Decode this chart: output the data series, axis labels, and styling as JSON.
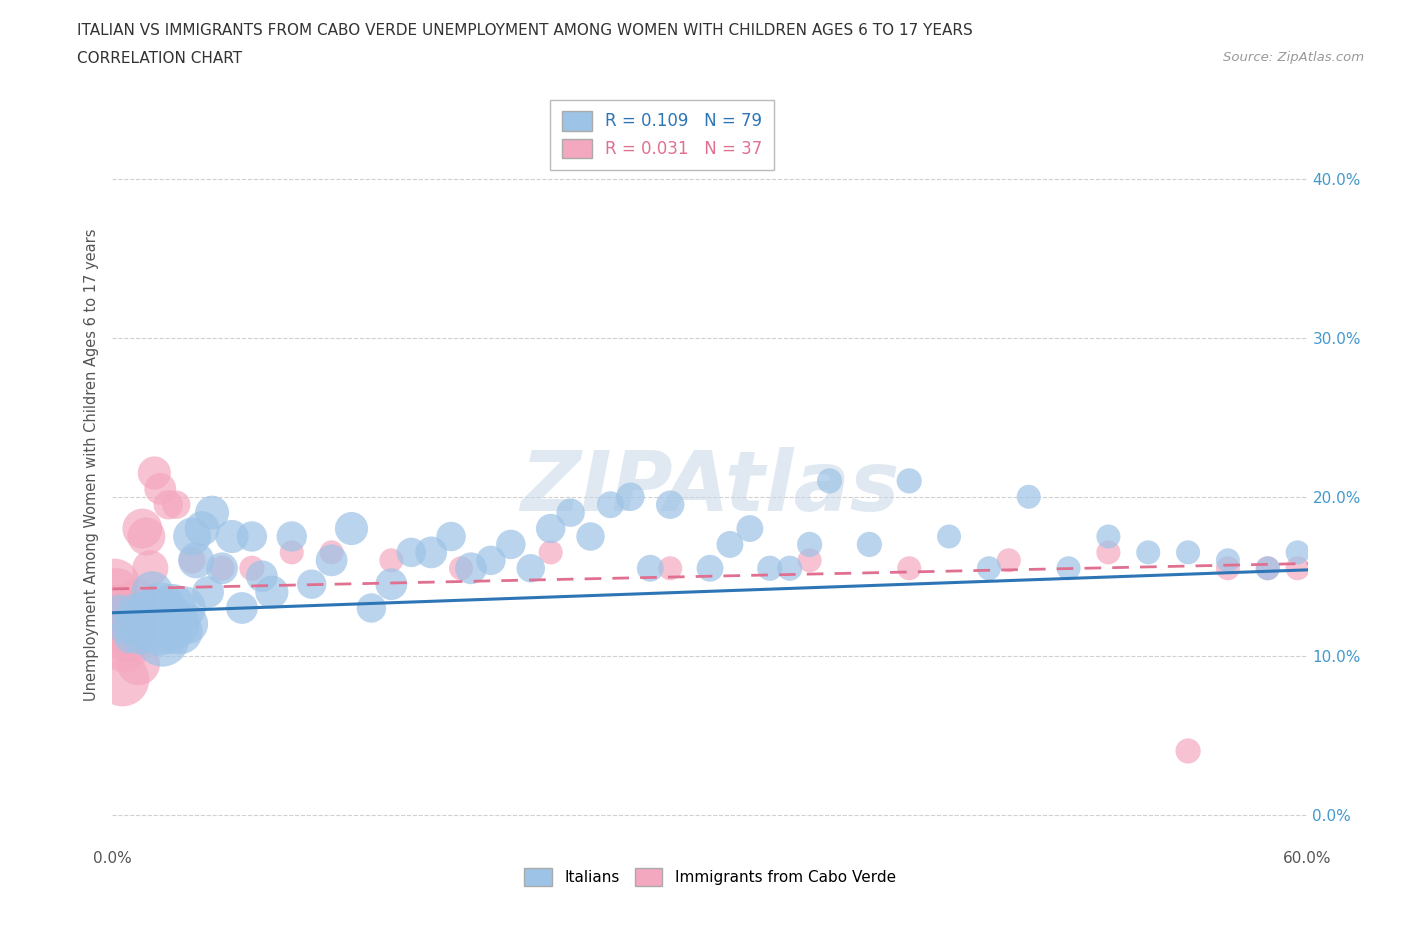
{
  "title_line1": "ITALIAN VS IMMIGRANTS FROM CABO VERDE UNEMPLOYMENT AMONG WOMEN WITH CHILDREN AGES 6 TO 17 YEARS",
  "title_line2": "CORRELATION CHART",
  "source_text": "Source: ZipAtlas.com",
  "ylabel": "Unemployment Among Women with Children Ages 6 to 17 years",
  "xlim": [
    0.0,
    0.6
  ],
  "ylim": [
    -0.02,
    0.46
  ],
  "ytick_labels": [
    "0.0%",
    "10.0%",
    "20.0%",
    "30.0%",
    "40.0%"
  ],
  "ytick_values": [
    0.0,
    0.1,
    0.2,
    0.3,
    0.4
  ],
  "xtick_labels": [
    "0.0%",
    "",
    "",
    "",
    "",
    "",
    "60.0%"
  ],
  "xtick_values": [
    0.0,
    0.1,
    0.2,
    0.3,
    0.4,
    0.5,
    0.6
  ],
  "italian_color": "#9dc3e6",
  "caboverde_color": "#f4a8c0",
  "italian_line_color": "#2e75b6",
  "caboverde_line_color": "#e07090",
  "background_color": "#ffffff",
  "grid_color": "#d0d0d0",
  "italians_x": [
    0.003,
    0.005,
    0.006,
    0.008,
    0.009,
    0.01,
    0.011,
    0.012,
    0.013,
    0.014,
    0.015,
    0.016,
    0.017,
    0.018,
    0.019,
    0.02,
    0.021,
    0.022,
    0.023,
    0.024,
    0.025,
    0.026,
    0.027,
    0.028,
    0.03,
    0.032,
    0.034,
    0.036,
    0.038,
    0.04,
    0.042,
    0.045,
    0.048,
    0.05,
    0.055,
    0.06,
    0.065,
    0.07,
    0.075,
    0.08,
    0.09,
    0.1,
    0.11,
    0.12,
    0.13,
    0.14,
    0.15,
    0.16,
    0.17,
    0.18,
    0.19,
    0.2,
    0.21,
    0.22,
    0.23,
    0.24,
    0.25,
    0.26,
    0.27,
    0.28,
    0.3,
    0.31,
    0.32,
    0.33,
    0.34,
    0.35,
    0.36,
    0.38,
    0.4,
    0.42,
    0.44,
    0.46,
    0.48,
    0.5,
    0.52,
    0.54,
    0.56,
    0.58,
    0.595
  ],
  "italians_y": [
    0.13,
    0.115,
    0.12,
    0.11,
    0.125,
    0.13,
    0.115,
    0.12,
    0.11,
    0.125,
    0.13,
    0.115,
    0.12,
    0.13,
    0.115,
    0.14,
    0.125,
    0.12,
    0.115,
    0.13,
    0.11,
    0.125,
    0.12,
    0.115,
    0.13,
    0.12,
    0.115,
    0.13,
    0.12,
    0.175,
    0.16,
    0.18,
    0.14,
    0.19,
    0.155,
    0.175,
    0.13,
    0.175,
    0.15,
    0.14,
    0.175,
    0.145,
    0.16,
    0.18,
    0.13,
    0.145,
    0.165,
    0.165,
    0.175,
    0.155,
    0.16,
    0.17,
    0.155,
    0.18,
    0.19,
    0.175,
    0.195,
    0.2,
    0.155,
    0.195,
    0.155,
    0.17,
    0.18,
    0.155,
    0.155,
    0.17,
    0.21,
    0.17,
    0.21,
    0.175,
    0.155,
    0.2,
    0.155,
    0.175,
    0.165,
    0.165,
    0.16,
    0.155,
    0.165
  ],
  "italians_size": [
    25,
    20,
    22,
    25,
    22,
    28,
    25,
    28,
    30,
    28,
    35,
    32,
    40,
    45,
    50,
    60,
    65,
    75,
    80,
    90,
    100,
    95,
    80,
    70,
    80,
    75,
    70,
    65,
    55,
    50,
    45,
    42,
    35,
    40,
    35,
    38,
    35,
    32,
    35,
    38,
    32,
    30,
    35,
    38,
    30,
    35,
    30,
    35,
    30,
    35,
    30,
    30,
    28,
    30,
    28,
    28,
    25,
    28,
    25,
    28,
    25,
    25,
    25,
    22,
    22,
    22,
    22,
    22,
    22,
    20,
    20,
    20,
    20,
    20,
    20,
    20,
    20,
    20,
    20
  ],
  "italians_highlight_idx": 60,
  "caboverde_x": [
    0.001,
    0.002,
    0.003,
    0.004,
    0.005,
    0.006,
    0.007,
    0.008,
    0.009,
    0.01,
    0.011,
    0.012,
    0.013,
    0.015,
    0.017,
    0.019,
    0.021,
    0.024,
    0.028,
    0.032,
    0.04,
    0.055,
    0.07,
    0.09,
    0.11,
    0.14,
    0.175,
    0.22,
    0.28,
    0.35,
    0.4,
    0.45,
    0.5,
    0.54,
    0.56,
    0.58,
    0.595
  ],
  "caboverde_y": [
    0.145,
    0.14,
    0.13,
    0.115,
    0.085,
    0.105,
    0.115,
    0.11,
    0.125,
    0.115,
    0.125,
    0.135,
    0.095,
    0.18,
    0.175,
    0.155,
    0.215,
    0.205,
    0.195,
    0.195,
    0.16,
    0.155,
    0.155,
    0.165,
    0.165,
    0.16,
    0.155,
    0.165,
    0.155,
    0.16,
    0.155,
    0.16,
    0.165,
    0.04,
    0.155,
    0.155,
    0.155
  ],
  "caboverde_size": [
    90,
    80,
    75,
    70,
    100,
    85,
    80,
    70,
    80,
    75,
    65,
    60,
    65,
    55,
    50,
    45,
    38,
    35,
    30,
    28,
    25,
    22,
    22,
    20,
    20,
    20,
    20,
    20,
    20,
    20,
    20,
    20,
    20,
    22,
    20,
    20,
    20
  ],
  "italian_R": 0.109,
  "italian_N": 79,
  "caboverde_R": 0.031,
  "caboverde_N": 37,
  "italian_trend": [
    0.127,
    0.154
  ],
  "caboverde_trend": [
    0.142,
    0.158
  ]
}
